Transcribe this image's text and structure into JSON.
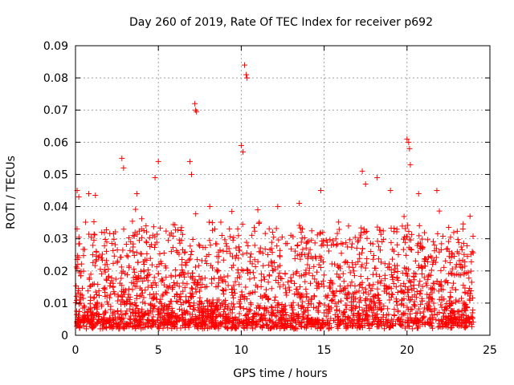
{
  "chart_data": {
    "type": "scatter",
    "title": "Day 260 of 2019, Rate Of TEC Index for receiver p692",
    "xlabel": "GPS time / hours",
    "ylabel": "ROTI / TECUs",
    "xlim": [
      0,
      25
    ],
    "ylim": [
      0,
      0.09
    ],
    "xticks": [
      0,
      5,
      10,
      15,
      20,
      25
    ],
    "xtick_labels": [
      "0",
      "5",
      "10",
      "15",
      "20",
      "25"
    ],
    "yticks": [
      0,
      0.01,
      0.02,
      0.03,
      0.04,
      0.05,
      0.06,
      0.07,
      0.08,
      0.09
    ],
    "ytick_labels": [
      "0",
      "0.01",
      "0.02",
      "0.03",
      "0.04",
      "0.05",
      "0.06",
      "0.07",
      "0.08",
      "0.09"
    ],
    "grid": true,
    "marker": "+",
    "marker_color": "#ff0000",
    "series": [
      {
        "name": "ROTI",
        "x_range": [
          0,
          24
        ],
        "baseline_range": [
          0.003,
          0.03
        ],
        "typical_value": 0.01,
        "notable_points": [
          {
            "x": 0.1,
            "y": 0.045
          },
          {
            "x": 0.2,
            "y": 0.043
          },
          {
            "x": 0.8,
            "y": 0.044
          },
          {
            "x": 1.2,
            "y": 0.0435
          },
          {
            "x": 2.8,
            "y": 0.055
          },
          {
            "x": 2.9,
            "y": 0.052
          },
          {
            "x": 3.7,
            "y": 0.044
          },
          {
            "x": 4.8,
            "y": 0.049
          },
          {
            "x": 5.0,
            "y": 0.054
          },
          {
            "x": 6.9,
            "y": 0.054
          },
          {
            "x": 7.0,
            "y": 0.05
          },
          {
            "x": 7.2,
            "y": 0.072
          },
          {
            "x": 7.25,
            "y": 0.07
          },
          {
            "x": 7.3,
            "y": 0.0695
          },
          {
            "x": 8.1,
            "y": 0.04
          },
          {
            "x": 10.0,
            "y": 0.059
          },
          {
            "x": 10.1,
            "y": 0.057
          },
          {
            "x": 10.2,
            "y": 0.084
          },
          {
            "x": 10.3,
            "y": 0.081
          },
          {
            "x": 10.35,
            "y": 0.08
          },
          {
            "x": 11.0,
            "y": 0.039
          },
          {
            "x": 12.2,
            "y": 0.04
          },
          {
            "x": 13.5,
            "y": 0.041
          },
          {
            "x": 14.8,
            "y": 0.045
          },
          {
            "x": 17.3,
            "y": 0.051
          },
          {
            "x": 17.5,
            "y": 0.047
          },
          {
            "x": 18.2,
            "y": 0.049
          },
          {
            "x": 19.0,
            "y": 0.045
          },
          {
            "x": 20.0,
            "y": 0.061
          },
          {
            "x": 20.1,
            "y": 0.06
          },
          {
            "x": 20.15,
            "y": 0.058
          },
          {
            "x": 20.2,
            "y": 0.053
          },
          {
            "x": 20.7,
            "y": 0.044
          },
          {
            "x": 21.8,
            "y": 0.045
          },
          {
            "x": 23.8,
            "y": 0.037
          }
        ]
      }
    ]
  }
}
